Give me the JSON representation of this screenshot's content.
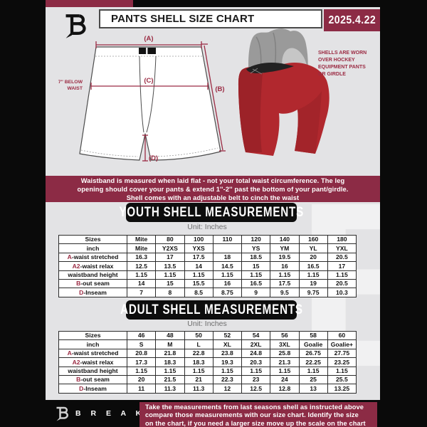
{
  "header": {
    "title": "PANTS SHELL SIZE CHART",
    "date": "2025.4.22"
  },
  "diagram": {
    "label_a": "(A)",
    "label_b": "(B)",
    "label_c": "(C)",
    "label_d": "(D)",
    "waist_note_lines": [
      "7'' BELOW",
      "WAIST"
    ],
    "photo_note_lines": [
      "SHELLS ARE WORN",
      "OVER HOCKEY",
      "EQUIPMENT PANTS",
      "OR GIRDLE"
    ]
  },
  "info_banner": {
    "lines": [
      "Waistband is measured when laid flat - not your total waist circumference. The leg",
      "opening should cover your pants & extend 1''-2'' past the bottom of your pant/girdle.",
      "Shell comes with an adjustable belt to cinch the waist"
    ]
  },
  "youth": {
    "heading": "YOUTH SHELL MEASUREMENTS",
    "unit": "Unit: Inches",
    "table": {
      "rows": [
        {
          "prefix": "",
          "label": "Sizes",
          "values": [
            "Mite",
            "80",
            "100",
            "110",
            "120",
            "140",
            "160",
            "180"
          ]
        },
        {
          "prefix": "",
          "label": "inch",
          "values": [
            "Mite",
            "Y2XS",
            "YXS",
            "",
            "YS",
            "YM",
            "YL",
            "YXL"
          ]
        },
        {
          "prefix": "A",
          "label": "-waist stretched",
          "values": [
            "16.3",
            "17",
            "17.5",
            "18",
            "18.5",
            "19.5",
            "20",
            "20.5"
          ]
        },
        {
          "prefix": "A2",
          "label": "-waist relax",
          "values": [
            "12.5",
            "13.5",
            "14",
            "14.5",
            "15",
            "16",
            "16.5",
            "17"
          ]
        },
        {
          "prefix": "",
          "label": "waistband height",
          "values": [
            "1.15",
            "1.15",
            "1.15",
            "1.15",
            "1.15",
            "1.15",
            "1.15",
            "1.15"
          ]
        },
        {
          "prefix": "B",
          "label": "-out seam",
          "values": [
            "14",
            "15",
            "15.5",
            "16",
            "16.5",
            "17.5",
            "19",
            "20.5"
          ]
        },
        {
          "prefix": "D",
          "label": "-Inseam",
          "values": [
            "7",
            "8",
            "8.5",
            "8.75",
            "9",
            "9.5",
            "9.75",
            "10.3"
          ]
        }
      ]
    }
  },
  "adult": {
    "heading": "ADULT SHELL MEASUREMENTS",
    "unit": "Unit: Inches",
    "table": {
      "rows": [
        {
          "prefix": "",
          "label": "Sizes",
          "values": [
            "46",
            "48",
            "50",
            "52",
            "54",
            "56",
            "58",
            "60"
          ]
        },
        {
          "prefix": "",
          "label": "inch",
          "values": [
            "S",
            "M",
            "L",
            "XL",
            "2XL",
            "3XL",
            "Goalie",
            "Goalie+"
          ]
        },
        {
          "prefix": "A",
          "label": "-waist stretched",
          "values": [
            "20.8",
            "21.8",
            "22.8",
            "23.8",
            "24.8",
            "25.8",
            "26.75",
            "27.75"
          ]
        },
        {
          "prefix": "A2",
          "label": "-waist relax",
          "values": [
            "17.3",
            "18.3",
            "18.3",
            "19.3",
            "20.3",
            "21.3",
            "22.25",
            "23.25"
          ]
        },
        {
          "prefix": "",
          "label": "waistband height",
          "values": [
            "1.15",
            "1.15",
            "1.15",
            "1.15",
            "1.15",
            "1.15",
            "1.15",
            "1.15"
          ]
        },
        {
          "prefix": "B",
          "label": "-out seam",
          "values": [
            "20",
            "21.5",
            "21",
            "22.3",
            "23",
            "24",
            "25",
            "25.5"
          ]
        },
        {
          "prefix": "D",
          "label": "-Inseam",
          "values": [
            "11",
            "11.3",
            "11.3",
            "12",
            "12.5",
            "12.8",
            "13",
            "13.25"
          ]
        }
      ]
    }
  },
  "footer": {
    "brand": "B R E A K A W A Y",
    "note_lines": [
      "Take the measurements from last seasons shell as instructed above",
      "compare those measurements  with our size chart. Identify the size",
      "on the chart, if you need a larger size move up the scale on the chart"
    ]
  },
  "watermark_letter": "B",
  "colors": {
    "maroon": "#8c2b45",
    "accent_red": "#9b2b43",
    "pants_red": "#b1282e",
    "background_gray": "#e3e3e5",
    "frame_black": "#0a0a0a"
  }
}
